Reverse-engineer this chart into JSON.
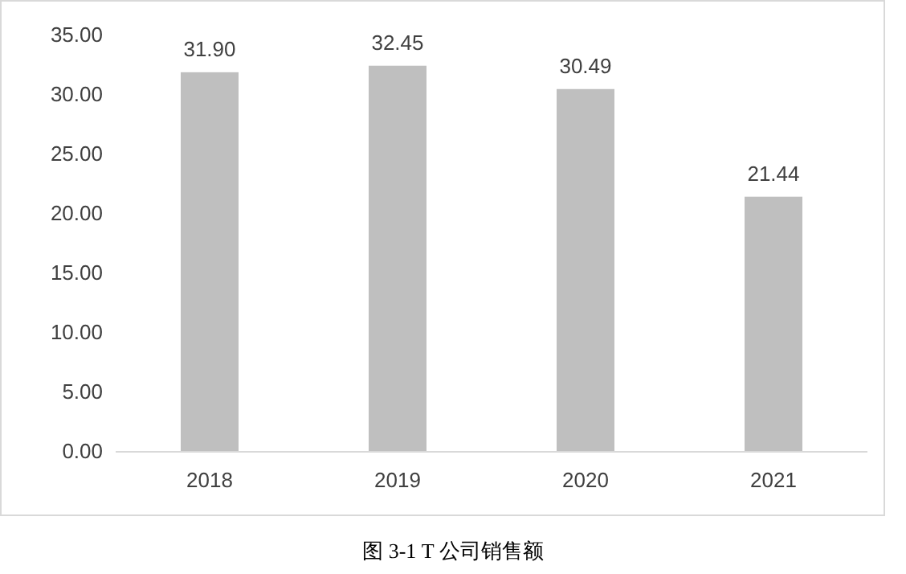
{
  "chart_data": {
    "type": "bar",
    "categories": [
      "2018",
      "2019",
      "2020",
      "2021"
    ],
    "values": [
      31.9,
      32.45,
      30.49,
      21.44
    ],
    "value_labels": [
      "31.90",
      "32.45",
      "30.49",
      "21.44"
    ],
    "color": "#bfbfbf",
    "ylim": [
      0,
      35
    ],
    "yticks": [
      {
        "value": 0,
        "label": "0.00"
      },
      {
        "value": 5,
        "label": "5.00"
      },
      {
        "value": 10,
        "label": "10.00"
      },
      {
        "value": 15,
        "label": "15.00"
      },
      {
        "value": 20,
        "label": "20.00"
      },
      {
        "value": 25,
        "label": "25.00"
      },
      {
        "value": 30,
        "label": "30.00"
      },
      {
        "value": 35,
        "label": "35.00"
      }
    ],
    "grid": false,
    "annotations": [
      "图 3-1    T 公司销售额"
    ]
  }
}
